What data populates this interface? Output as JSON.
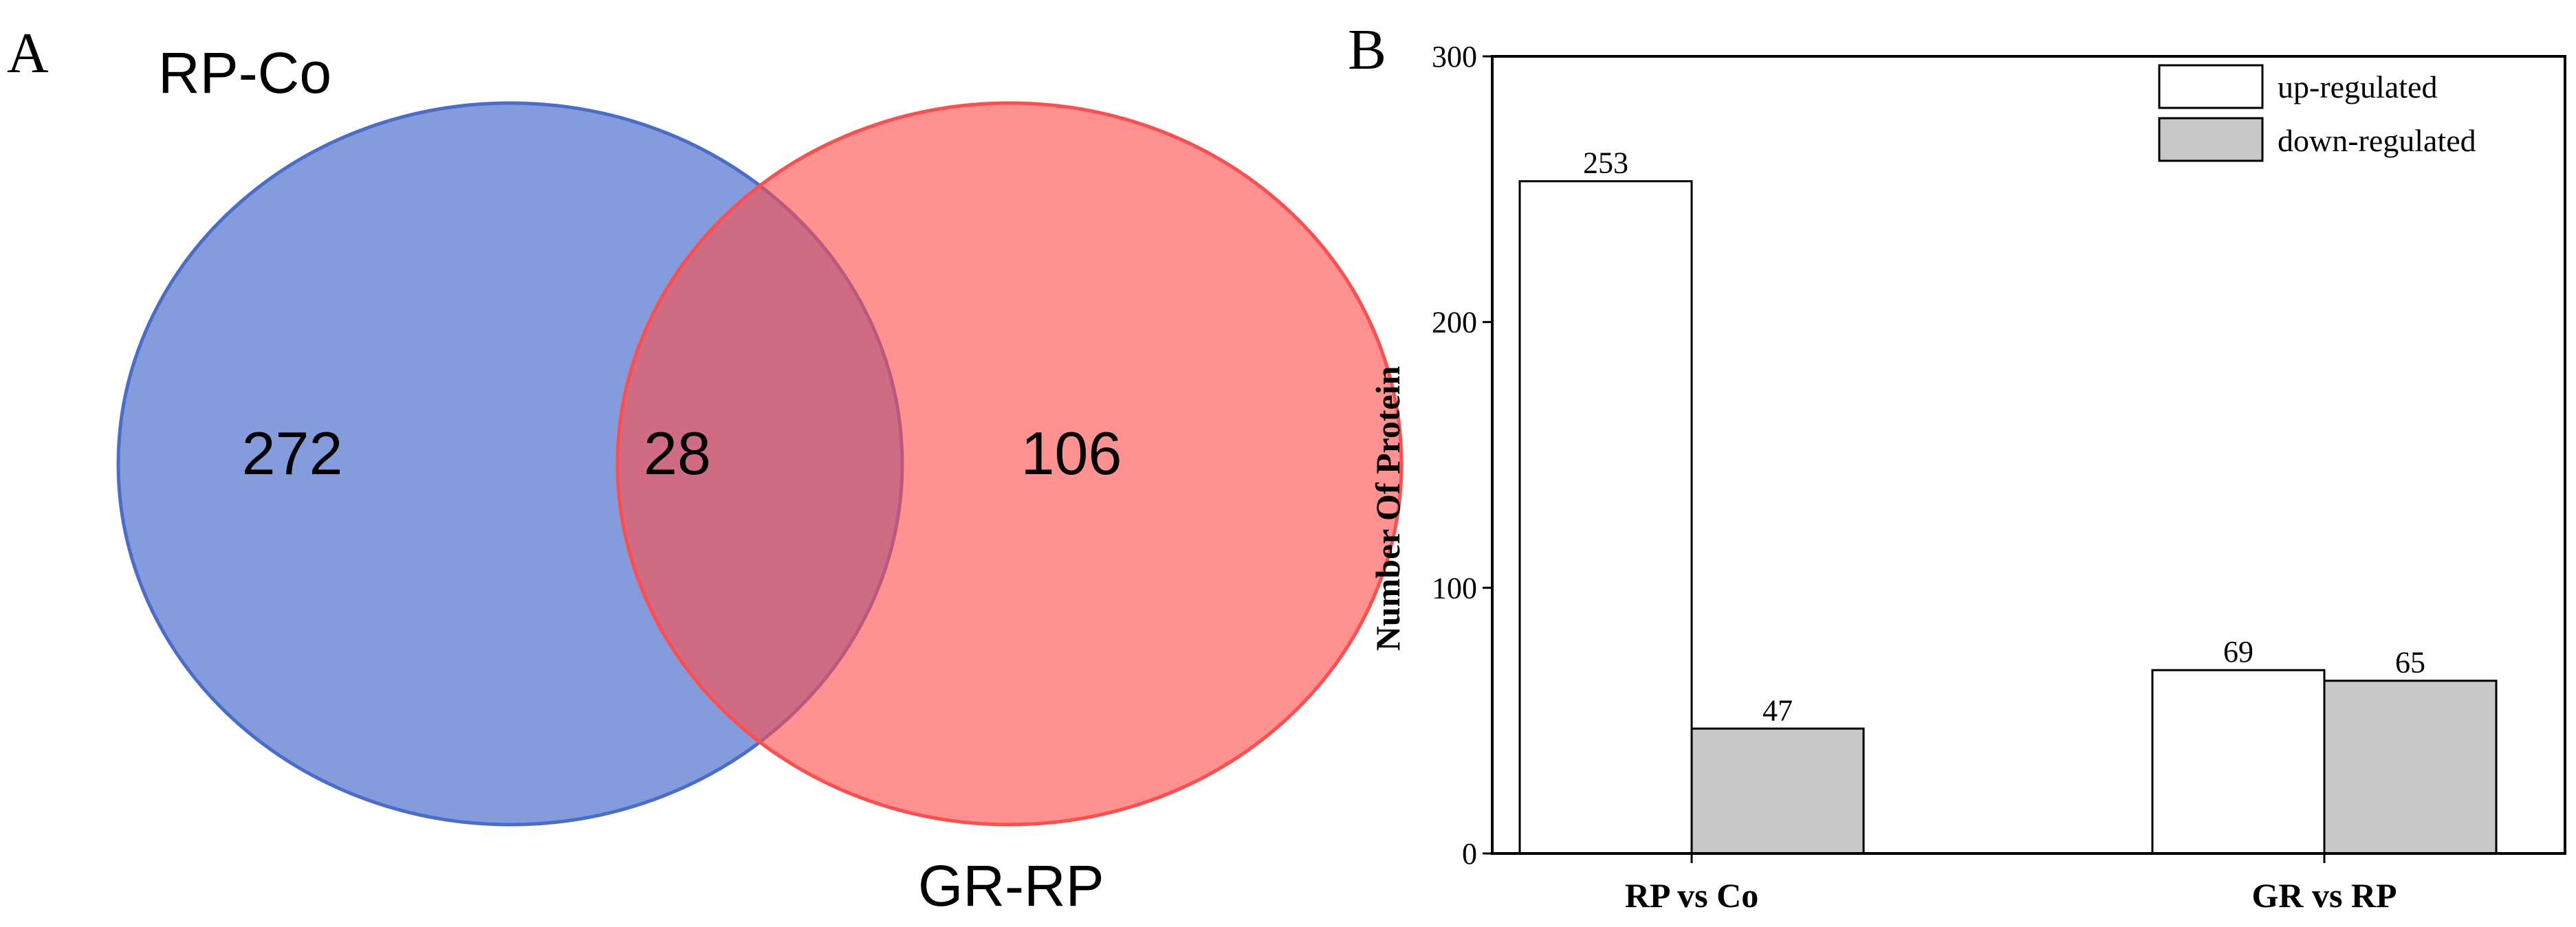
{
  "panels": {
    "a_label": "A",
    "b_label": "B"
  },
  "colors": {
    "set_left": "#4a6dcc",
    "set_right": "#ff4d4d",
    "up_fill": "#ffffff",
    "down_fill": "#c8c8c8",
    "stroke": "#000000"
  },
  "chart_data": [
    {
      "type": "venn",
      "sets": [
        {
          "name": "RP-Co",
          "only": 272
        },
        {
          "name": "GR-RP",
          "only": 106
        }
      ],
      "intersection": 28
    },
    {
      "type": "bar",
      "categories": [
        "RP vs Co",
        "GR vs RP"
      ],
      "series": [
        {
          "name": "up-regulated",
          "values": [
            253,
            69
          ]
        },
        {
          "name": "down-regulated",
          "values": [
            47,
            65
          ]
        }
      ],
      "ylabel": "Number Of Protein",
      "xlabel": "",
      "ylim": [
        0,
        300
      ],
      "yticks": [
        0,
        100,
        200,
        300
      ],
      "legend": "top-right",
      "grid": false
    }
  ]
}
